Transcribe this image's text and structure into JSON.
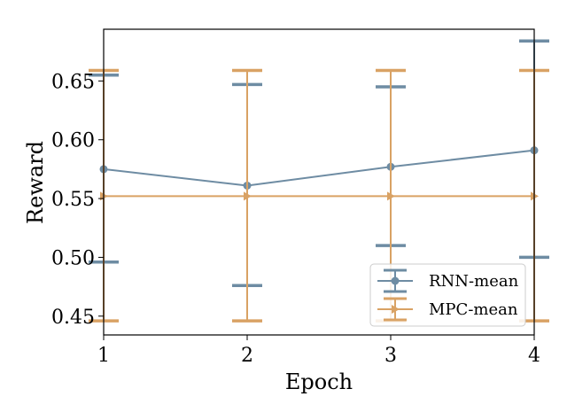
{
  "chart_data": {
    "type": "line",
    "title": "",
    "xlabel": "Epoch",
    "ylabel": "Reward",
    "x": [
      1,
      2,
      3,
      4
    ],
    "xlim": [
      1,
      4
    ],
    "ylim": [
      0.434,
      0.694
    ],
    "x_ticks": [
      "1",
      "2",
      "3",
      "4"
    ],
    "y_ticks": [
      "0.45",
      "0.50",
      "0.55",
      "0.60",
      "0.65"
    ],
    "y_tick_values": [
      0.45,
      0.5,
      0.55,
      0.6,
      0.65
    ],
    "grid": false,
    "legend_position": "lower-right",
    "series": [
      {
        "name": "RNN-mean",
        "marker": "circle",
        "color": "#6e8ca3",
        "values": [
          0.575,
          0.561,
          0.577,
          0.591
        ],
        "err_low": [
          0.496,
          0.476,
          0.51,
          0.5
        ],
        "err_high": [
          0.655,
          0.647,
          0.645,
          0.684
        ]
      },
      {
        "name": "MPC-mean",
        "marker": "triangle-right",
        "color": "#d9a264",
        "values": [
          0.552,
          0.552,
          0.552,
          0.552
        ],
        "err_low": [
          0.446,
          0.446,
          0.446,
          0.446
        ],
        "err_high": [
          0.659,
          0.659,
          0.659,
          0.659
        ]
      }
    ]
  }
}
